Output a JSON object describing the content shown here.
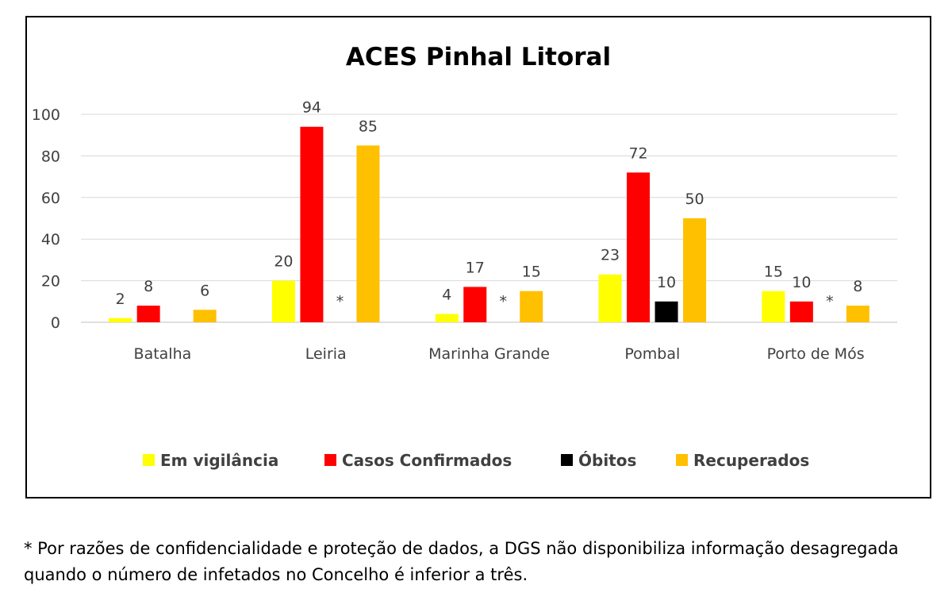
{
  "chart_data": {
    "type": "bar",
    "title": "ACES Pinhal Litoral",
    "categories": [
      "Batalha",
      "Leiria",
      "Marinha Grande",
      "Pombal",
      "Porto de Mós"
    ],
    "ylim": [
      0,
      100
    ],
    "yticks": [
      0,
      20,
      40,
      60,
      80,
      100
    ],
    "grid": true,
    "legend_position": "bottom",
    "series": [
      {
        "name": "Em vigilância",
        "color": "#FFFF00",
        "values": [
          2,
          20,
          4,
          23,
          15
        ],
        "labels": [
          "2",
          "20",
          "4",
          "23",
          "15"
        ]
      },
      {
        "name": "Casos Confirmados",
        "color": "#FF0000",
        "values": [
          8,
          94,
          17,
          72,
          10
        ],
        "labels": [
          "8",
          "94",
          "17",
          "72",
          "10"
        ]
      },
      {
        "name": "Óbitos",
        "color": "#000000",
        "values": [
          null,
          null,
          null,
          10,
          null
        ],
        "labels": [
          "",
          "*",
          "*",
          "10",
          "*"
        ]
      },
      {
        "name": "Recuperados",
        "color": "#FFC000",
        "values": [
          6,
          85,
          15,
          50,
          8
        ],
        "labels": [
          "6",
          "85",
          "15",
          "50",
          "8"
        ]
      }
    ]
  },
  "footnote": "* Por razões de confidencialidade e proteção de dados, a DGS não disponibiliza informação desagregada quando o número de infetados no Concelho é inferior a três."
}
